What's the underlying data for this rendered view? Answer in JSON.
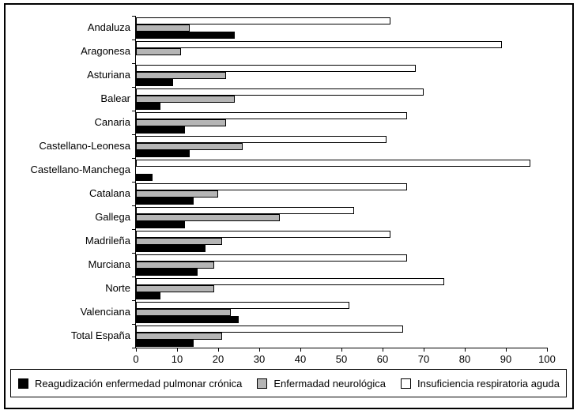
{
  "chart_data": {
    "type": "bar",
    "orientation": "horizontal",
    "categories": [
      "Andaluza",
      "Aragonesa",
      "Asturiana",
      "Balear",
      "Canaria",
      "Castellano-Leonesa",
      "Castellano-Manchega",
      "Catalana",
      "Gallega",
      "Madrileña",
      "Murciana",
      "Norte",
      "Valenciana",
      "Total España"
    ],
    "series": [
      {
        "key": "reagudizacion-pulmonar-cronica",
        "name": "Reagudización enfermedad pulmonar crónica",
        "color": "#000000",
        "border_color": "#000000",
        "values": [
          24,
          0,
          9,
          6,
          12,
          13,
          4,
          14,
          12,
          17,
          15,
          6,
          25,
          14
        ]
      },
      {
        "key": "enfermedad-neurologica",
        "name": "Enfermadad neurológica",
        "color": "#b5b5b5",
        "border_color": "#000000",
        "values": [
          13,
          11,
          22,
          24,
          22,
          26,
          0,
          20,
          35,
          21,
          19,
          19,
          23,
          21
        ]
      },
      {
        "key": "insuficiencia-respiratoria-aguda",
        "name": "Insuficiencia respiratoria aguda",
        "color": "#ffffff",
        "border_color": "#000000",
        "values": [
          62,
          89,
          68,
          70,
          66,
          61,
          96,
          66,
          53,
          62,
          66,
          75,
          52,
          65
        ]
      }
    ],
    "bar_order_top_to_bottom": [
      "insuficiencia-respiratoria-aguda",
      "enfermedad-neurologica",
      "reagudizacion-pulmonar-cronica"
    ],
    "xlim": [
      0,
      100
    ],
    "x_ticks": [
      0,
      10,
      20,
      30,
      40,
      50,
      60,
      70,
      80,
      90,
      100
    ],
    "grid": false,
    "legend_position": "bottom",
    "axis_color": "#000000"
  }
}
